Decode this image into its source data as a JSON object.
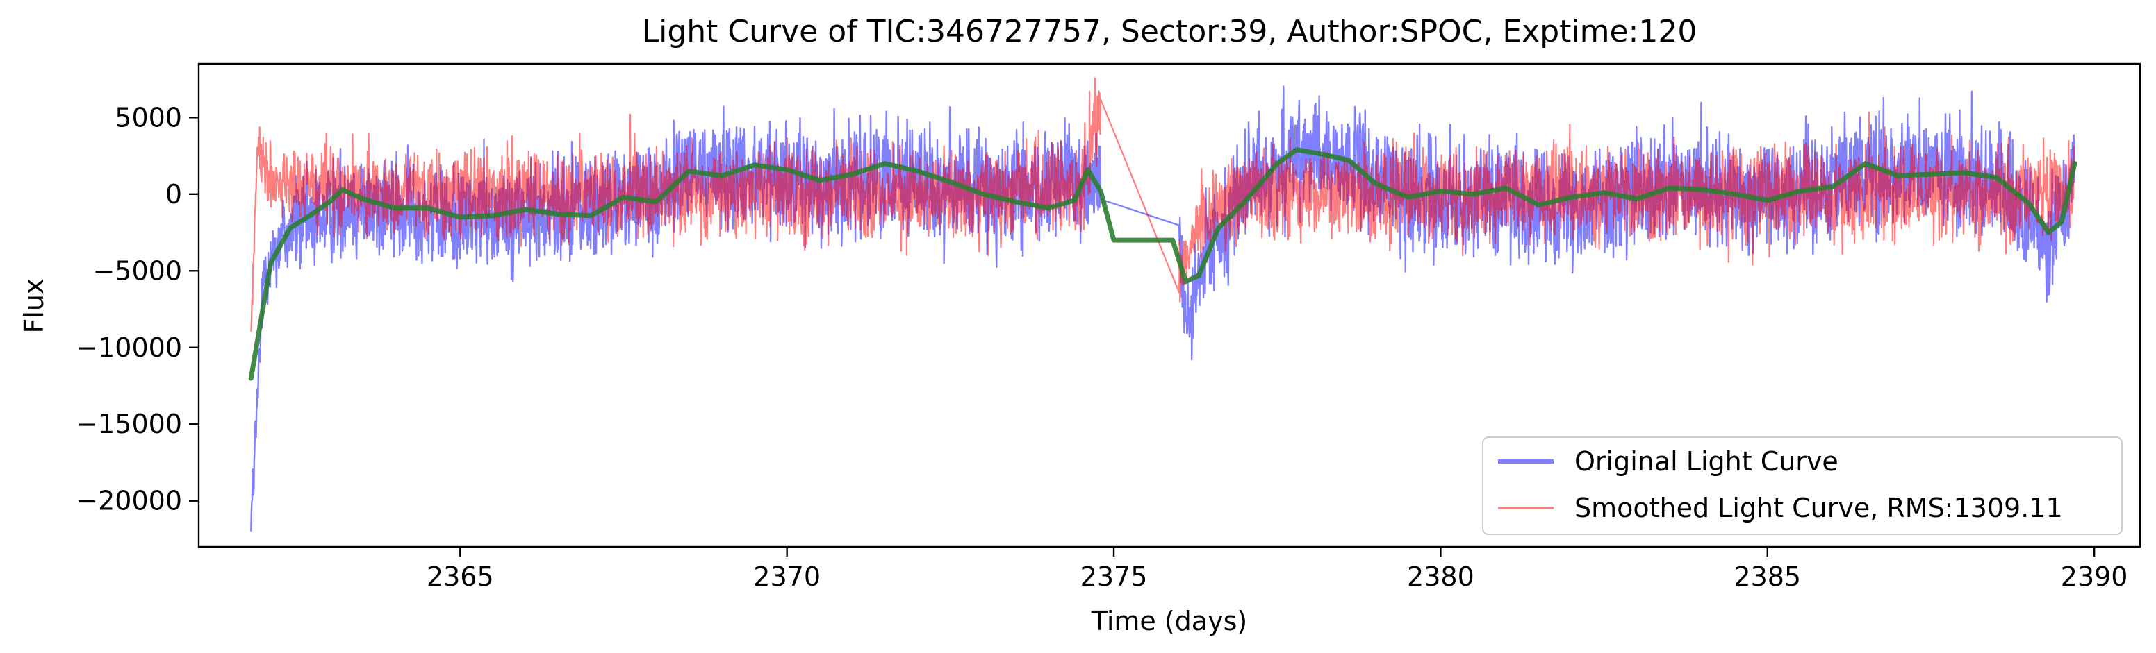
{
  "chart_data": {
    "type": "line",
    "title": "Light Curve of TIC:346727757, Sector:39, Author:SPOC, Exptime:120",
    "xlabel": "Time (days)",
    "ylabel": "Flux",
    "xlim": [
      2361.0,
      2390.7
    ],
    "ylim": [
      -23000,
      8500
    ],
    "xticks": [
      2365,
      2370,
      2375,
      2380,
      2385,
      2390
    ],
    "xtick_labels": [
      "2365",
      "2370",
      "2375",
      "2380",
      "2385",
      "2390"
    ],
    "yticks": [
      5000,
      0,
      -5000,
      -10000,
      -15000,
      -20000
    ],
    "ytick_labels": [
      "5000",
      "0",
      "−5000",
      "−10000",
      "−15000",
      "−20000"
    ],
    "grid": false,
    "legend_position": "lower-right",
    "data_range": {
      "start": 2361.8,
      "gap_start": 2374.8,
      "gap_end": 2376.0,
      "end": 2389.7
    },
    "series": [
      {
        "name": "Original Light Curve",
        "color": "#0000ff",
        "alpha": 0.5,
        "trend": [
          [
            2361.8,
            -21500
          ],
          [
            2362.0,
            -5000
          ],
          [
            2362.3,
            -2500
          ],
          [
            2362.8,
            -1500
          ],
          [
            2363.3,
            -500
          ],
          [
            2364.0,
            -1000
          ],
          [
            2365.0,
            -1500
          ],
          [
            2366.0,
            -1200
          ],
          [
            2367.0,
            -800
          ],
          [
            2368.0,
            0
          ],
          [
            2368.5,
            1500
          ],
          [
            2369.5,
            1500
          ],
          [
            2370.5,
            500
          ],
          [
            2371.5,
            1500
          ],
          [
            2372.5,
            500
          ],
          [
            2373.5,
            0
          ],
          [
            2374.5,
            1000
          ],
          [
            2374.8,
            1000
          ],
          [
            2376.0,
            -3000
          ],
          [
            2376.1,
            -9000
          ],
          [
            2376.4,
            -4000
          ],
          [
            2377.0,
            500
          ],
          [
            2377.8,
            2500
          ],
          [
            2378.5,
            2000
          ],
          [
            2379.5,
            0
          ],
          [
            2380.5,
            0
          ],
          [
            2381.5,
            -800
          ],
          [
            2382.5,
            -300
          ],
          [
            2383.5,
            500
          ],
          [
            2384.5,
            0
          ],
          [
            2385.5,
            500
          ],
          [
            2386.5,
            1500
          ],
          [
            2387.5,
            1500
          ],
          [
            2388.5,
            500
          ],
          [
            2389.0,
            -2000
          ],
          [
            2389.3,
            -3000
          ],
          [
            2389.7,
            1500
          ]
        ],
        "amplitude": [
          [
            2361.8,
            2000
          ],
          [
            2362.5,
            3500
          ],
          [
            2368.3,
            3800
          ],
          [
            2374.8,
            3800
          ],
          [
            2376.0,
            3000
          ],
          [
            2377.0,
            3800
          ],
          [
            2389.7,
            4000
          ]
        ]
      },
      {
        "name": "Smoothed Light Curve, RMS:1309.11",
        "color": "#ff0000",
        "alpha": 0.5,
        "trend": [
          [
            2361.8,
            -9000
          ],
          [
            2361.9,
            3000
          ],
          [
            2362.2,
            500
          ],
          [
            2363.0,
            500
          ],
          [
            2364.0,
            0
          ],
          [
            2365.0,
            0
          ],
          [
            2366.0,
            0
          ],
          [
            2367.0,
            0
          ],
          [
            2368.0,
            0
          ],
          [
            2369.0,
            0
          ],
          [
            2370.0,
            0
          ],
          [
            2371.0,
            0
          ],
          [
            2372.0,
            0
          ],
          [
            2373.0,
            0
          ],
          [
            2374.5,
            500
          ],
          [
            2374.8,
            5500
          ],
          [
            2374.9,
            3500
          ],
          [
            2375.9,
            -800
          ],
          [
            2376.0,
            -6000
          ],
          [
            2376.3,
            -1500
          ],
          [
            2377.0,
            0
          ],
          [
            2378.0,
            0
          ],
          [
            2379.0,
            0
          ],
          [
            2380.0,
            0
          ],
          [
            2381.0,
            0
          ],
          [
            2382.0,
            0
          ],
          [
            2383.0,
            0
          ],
          [
            2384.0,
            0
          ],
          [
            2385.0,
            0
          ],
          [
            2386.0,
            0
          ],
          [
            2387.0,
            0
          ],
          [
            2388.0,
            0
          ],
          [
            2389.0,
            0
          ],
          [
            2389.7,
            0
          ]
        ],
        "amplitude": [
          [
            2361.8,
            1500
          ],
          [
            2362.5,
            3000
          ],
          [
            2374.8,
            3200
          ],
          [
            2376.0,
            2500
          ],
          [
            2377.0,
            3200
          ],
          [
            2389.7,
            3300
          ]
        ]
      },
      {
        "name": "",
        "color": "#2e7d32",
        "alpha": 0.9,
        "points": [
          [
            2361.8,
            -12000
          ],
          [
            2362.1,
            -4500
          ],
          [
            2362.4,
            -2200
          ],
          [
            2362.7,
            -1400
          ],
          [
            2363.0,
            -500
          ],
          [
            2363.2,
            300
          ],
          [
            2363.5,
            -300
          ],
          [
            2364.0,
            -900
          ],
          [
            2364.5,
            -900
          ],
          [
            2365.0,
            -1500
          ],
          [
            2365.5,
            -1400
          ],
          [
            2366.0,
            -1000
          ],
          [
            2366.5,
            -1300
          ],
          [
            2367.0,
            -1400
          ],
          [
            2367.5,
            -200
          ],
          [
            2368.0,
            -500
          ],
          [
            2368.5,
            1500
          ],
          [
            2369.0,
            1200
          ],
          [
            2369.5,
            1900
          ],
          [
            2370.0,
            1600
          ],
          [
            2370.5,
            900
          ],
          [
            2371.0,
            1300
          ],
          [
            2371.5,
            2000
          ],
          [
            2372.0,
            1500
          ],
          [
            2372.5,
            800
          ],
          [
            2373.0,
            0
          ],
          [
            2373.5,
            -500
          ],
          [
            2374.0,
            -900
          ],
          [
            2374.4,
            -400
          ],
          [
            2374.6,
            1600
          ],
          [
            2374.8,
            200
          ],
          [
            2375.0,
            -3000
          ],
          [
            2375.9,
            -3000
          ],
          [
            2376.1,
            -5700
          ],
          [
            2376.3,
            -5300
          ],
          [
            2376.6,
            -2200
          ],
          [
            2377.0,
            -500
          ],
          [
            2377.5,
            2000
          ],
          [
            2377.8,
            2900
          ],
          [
            2378.2,
            2600
          ],
          [
            2378.6,
            2200
          ],
          [
            2379.0,
            700
          ],
          [
            2379.5,
            -200
          ],
          [
            2380.0,
            200
          ],
          [
            2380.5,
            0
          ],
          [
            2381.0,
            400
          ],
          [
            2381.5,
            -700
          ],
          [
            2382.0,
            -200
          ],
          [
            2382.5,
            100
          ],
          [
            2383.0,
            -300
          ],
          [
            2383.5,
            400
          ],
          [
            2384.0,
            300
          ],
          [
            2384.5,
            0
          ],
          [
            2385.0,
            -400
          ],
          [
            2385.5,
            200
          ],
          [
            2386.0,
            500
          ],
          [
            2386.5,
            2000
          ],
          [
            2387.0,
            1200
          ],
          [
            2387.5,
            1300
          ],
          [
            2388.0,
            1400
          ],
          [
            2388.5,
            1100
          ],
          [
            2389.0,
            -600
          ],
          [
            2389.3,
            -2500
          ],
          [
            2389.5,
            -1800
          ],
          [
            2389.7,
            2000
          ]
        ]
      }
    ]
  }
}
